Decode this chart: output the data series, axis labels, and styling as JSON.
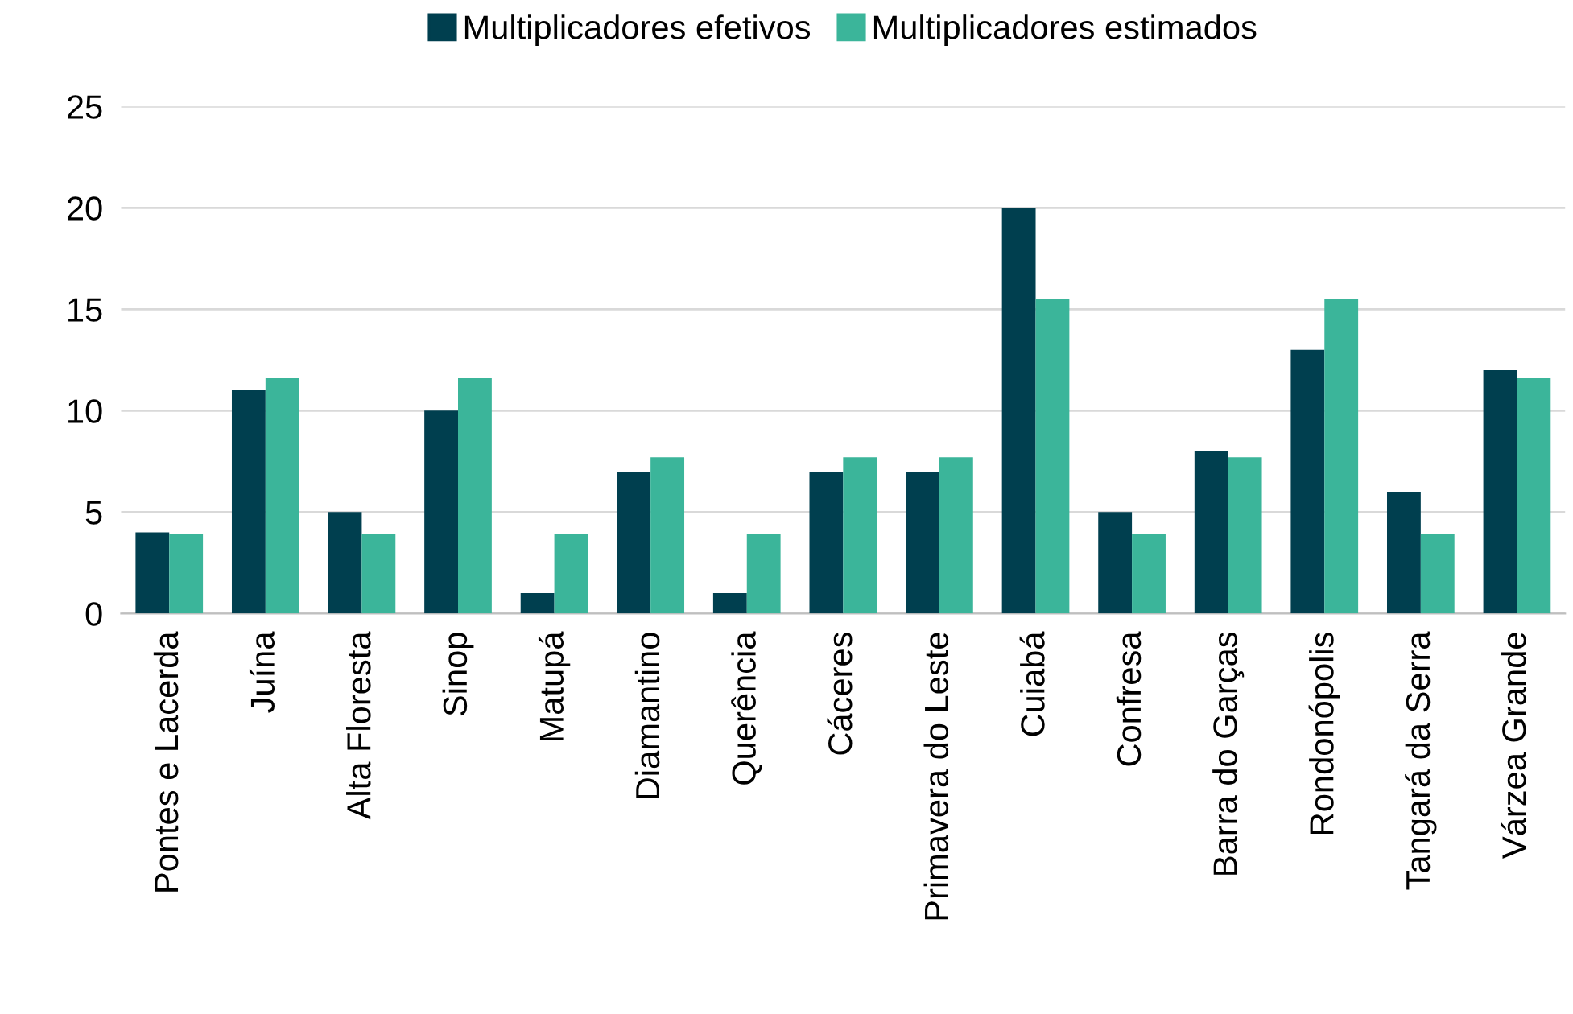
{
  "chart_data": {
    "type": "bar",
    "categories": [
      "Pontes e Lacerda",
      "Juína",
      "Alta Floresta",
      "Sinop",
      "Matupá",
      "Diamantino",
      "Querência",
      "Cáceres",
      "Primavera do Leste",
      "Cuiabá",
      "Confresa",
      "Barra do Garças",
      "Rondonópolis",
      "Tangará da Serra",
      "Várzea Grande"
    ],
    "series": [
      {
        "name": "Multiplicadores efetivos",
        "color": "#003f4f",
        "values": [
          4,
          11,
          5,
          10,
          1,
          7,
          1,
          7,
          7,
          20,
          5,
          8,
          13,
          6,
          12
        ]
      },
      {
        "name": "Multiplicadores estimados",
        "color": "#3bb59a",
        "values": [
          3.9,
          11.6,
          3.9,
          11.6,
          3.9,
          7.7,
          3.9,
          7.7,
          7.7,
          15.5,
          3.9,
          7.7,
          15.5,
          3.9,
          11.6
        ]
      }
    ],
    "ylim": [
      0,
      25
    ],
    "yticks": [
      0,
      5,
      10,
      15,
      20,
      25
    ],
    "grid": "y",
    "legend": "top"
  }
}
